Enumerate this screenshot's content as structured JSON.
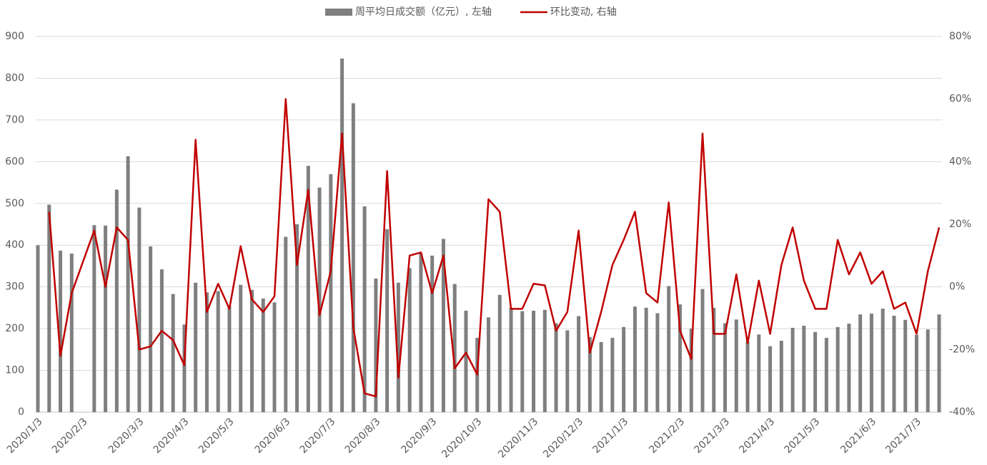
{
  "chart_data": {
    "type": "bar+line",
    "legend": "top",
    "grid": true,
    "categories": [
      "2020/1/3",
      null,
      null,
      null,
      "2020/2/3",
      null,
      null,
      null,
      null,
      "2020/3/3",
      null,
      null,
      null,
      "2020/4/3",
      null,
      null,
      null,
      "2020/5/3",
      null,
      null,
      null,
      null,
      "2020/6/3",
      null,
      null,
      null,
      "2020/7/3",
      null,
      null,
      null,
      "2020/8/3",
      null,
      null,
      null,
      null,
      "2020/9/3",
      null,
      null,
      null,
      "2020/10/3",
      null,
      null,
      null,
      null,
      "2020/11/3",
      null,
      null,
      null,
      "2020/12/3",
      null,
      null,
      null,
      "2021/1/3",
      null,
      null,
      null,
      null,
      "2021/2/3",
      null,
      null,
      null,
      "2021/3/3",
      null,
      null,
      null,
      "2021/4/3",
      null,
      null,
      null,
      "2021/5/3",
      null,
      null,
      null,
      null,
      "2021/6/3",
      null,
      null,
      null,
      "2021/7/3",
      null,
      null
    ],
    "series": [
      {
        "name": "周平均日成交额（亿元）, 左轴",
        "color": "#7f7f7f",
        "kind": "bar",
        "axis": "y",
        "values": [
          400,
          497,
          387,
          380,
          null,
          448,
          447,
          533,
          613,
          490,
          397,
          342,
          283,
          210,
          310,
          287,
          290,
          255,
          305,
          293,
          272,
          263,
          420,
          450,
          590,
          538,
          570,
          847,
          740,
          493,
          320,
          438,
          310,
          345,
          380,
          375,
          415,
          307,
          243,
          178,
          227,
          281,
          250,
          242,
          243,
          245,
          213,
          196,
          230,
          180,
          168,
          178,
          204,
          253,
          250,
          237,
          302,
          258,
          200,
          295,
          250,
          213,
          222,
          170,
          186,
          158,
          171,
          202,
          207,
          192,
          178,
          204,
          212,
          234,
          236,
          248,
          231,
          221,
          185,
          198,
          234
        ]
      },
      {
        "name": "环比变动, 右轴",
        "color": "#c00000",
        "kind": "line",
        "axis": "y2",
        "values": [
          null,
          24,
          -22,
          -2,
          8,
          18,
          0,
          19,
          15,
          -20,
          -19,
          -14,
          -17,
          -25,
          47,
          -8,
          1,
          -7,
          13,
          -4,
          -8,
          -3,
          60,
          7,
          31,
          -9,
          5,
          49,
          -13,
          -34,
          -35,
          37,
          -29,
          10,
          11,
          -2,
          10,
          -26,
          -21,
          -28,
          28,
          24,
          -7,
          -7,
          1,
          0.5,
          -14,
          -8,
          18,
          -21,
          -8,
          7,
          15,
          24,
          -2,
          -5,
          27,
          -14,
          -23,
          49,
          -15,
          -15,
          4,
          -18,
          2,
          -15,
          7,
          19,
          2,
          -7,
          -7,
          15,
          4,
          11,
          1,
          5,
          -7,
          -5,
          -15,
          5,
          19
        ]
      }
    ],
    "ylim": [
      0,
      900
    ],
    "yticks": [
      0,
      100,
      200,
      300,
      400,
      500,
      600,
      700,
      800,
      900
    ],
    "y2lim": [
      -40,
      80
    ],
    "y2ticks": [
      {
        "value": -40,
        "label": "-40%"
      },
      {
        "value": -20,
        "label": "-20%"
      },
      {
        "value": 0,
        "label": "0%"
      },
      {
        "value": 20,
        "label": "20%"
      },
      {
        "value": 40,
        "label": "40%"
      },
      {
        "value": 60,
        "label": "60%"
      },
      {
        "value": 80,
        "label": "80%"
      }
    ]
  }
}
